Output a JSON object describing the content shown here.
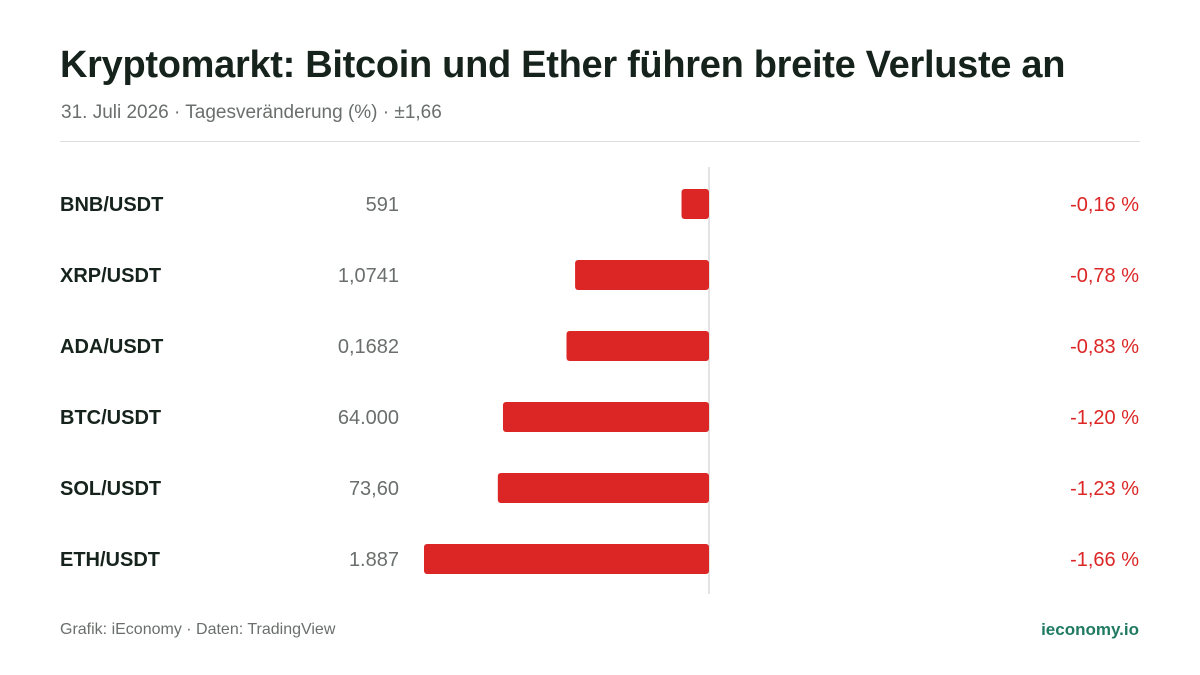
{
  "header": {
    "title": "Kryptomarkt: Bitcoin und Ether führen breite Verluste an",
    "subtitle": "31. Juli 2026 · Tagesveränderung (%) · ±1,66"
  },
  "footer": {
    "source": "Grafik: iEconomy · Daten: TradingView",
    "brand": "ieconomy.io"
  },
  "colors": {
    "negative": "#dc2626",
    "brand": "#1f7a61"
  },
  "chart_data": {
    "type": "bar",
    "orientation": "horizontal",
    "xlim": [
      -1.66,
      1.66
    ],
    "rows": [
      {
        "pair": "BNB/USDT",
        "price": "591",
        "change": -0.16,
        "change_label": "-0,16 %"
      },
      {
        "pair": "XRP/USDT",
        "price": "1,0741",
        "change": -0.78,
        "change_label": "-0,78 %"
      },
      {
        "pair": "ADA/USDT",
        "price": "0,1682",
        "change": -0.83,
        "change_label": "-0,83 %"
      },
      {
        "pair": "BTC/USDT",
        "price": "64.000",
        "change": -1.2,
        "change_label": "-1,20 %"
      },
      {
        "pair": "SOL/USDT",
        "price": "73,60",
        "change": -1.23,
        "change_label": "-1,23 %"
      },
      {
        "pair": "ETH/USDT",
        "price": "1.887",
        "change": -1.66,
        "change_label": "-1,66 %"
      }
    ]
  }
}
